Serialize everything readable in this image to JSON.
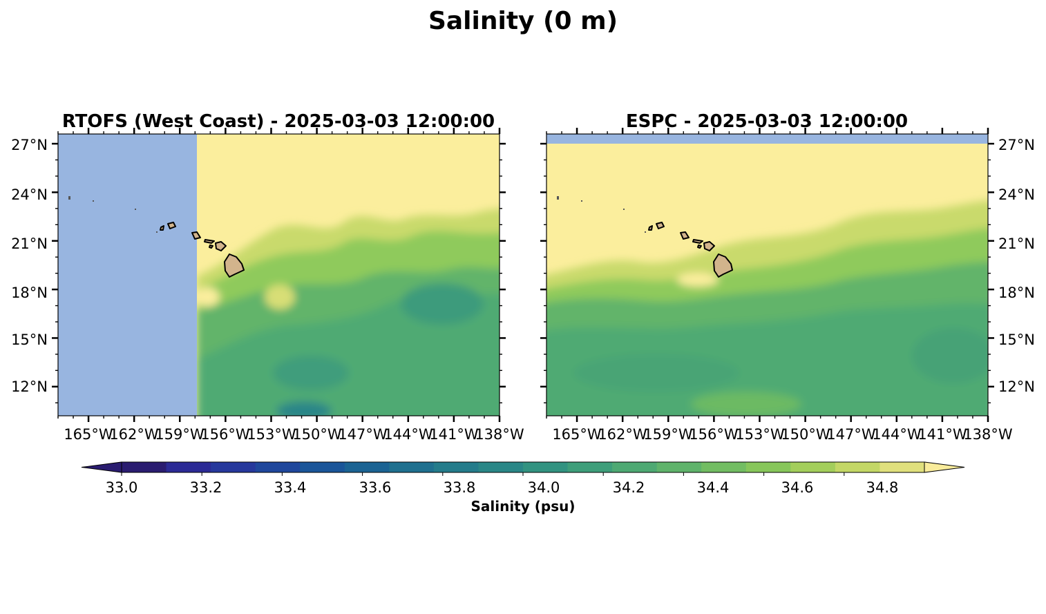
{
  "figure": {
    "title": "Salinity (0 m)"
  },
  "panels": [
    {
      "title": "RTOFS (West Coast) - 2025-03-03 12:00:00",
      "model": "RTOFS",
      "lat_labels": [
        "27°N",
        "24°N",
        "21°N",
        "18°N",
        "15°N",
        "12°N"
      ],
      "lon_labels": [
        "165°W",
        "162°W",
        "159°W",
        "156°W",
        "153°W",
        "150°W",
        "147°W",
        "144°W",
        "141°W",
        "138°W"
      ],
      "lat_label_side": "left",
      "no_data_region": "west of ~157.5°W",
      "no_data_color": "#98b5e0"
    },
    {
      "title": "ESPC - 2025-03-03 12:00:00",
      "model": "ESPC",
      "lat_labels": [
        "27°N",
        "24°N",
        "21°N",
        "18°N",
        "15°N",
        "12°N"
      ],
      "lon_labels": [
        "165°W",
        "162°W",
        "159°W",
        "156°W",
        "153°W",
        "150°W",
        "147°W",
        "144°W",
        "141°W",
        "138°W"
      ],
      "lat_label_side": "right",
      "no_data_region": "north of ~27°N",
      "no_data_color": "#98b5e0"
    }
  ],
  "map_extent": {
    "lon_min": -167,
    "lon_max": -138,
    "lat_min": 10.2,
    "lat_max": 27.6
  },
  "colorbar": {
    "label": "Salinity (psu)",
    "tick_labels": [
      "33.0",
      "33.2",
      "33.4",
      "33.6",
      "33.8",
      "34.0",
      "34.2",
      "34.4",
      "34.6",
      "34.8"
    ],
    "colors": [
      "#2a1c70",
      "#2b2a95",
      "#26389c",
      "#1f479c",
      "#1a5599",
      "#1b6393",
      "#1f708f",
      "#247c8b",
      "#2a8787",
      "#329381",
      "#3e9e7a",
      "#4ea973",
      "#5fb36b",
      "#72bd62",
      "#87c65a",
      "#a3ce5b",
      "#c3d766",
      "#e0e07d",
      "#f9ec9b"
    ],
    "extend": "both"
  },
  "land_color": "#d2b48c",
  "ocean_dominant_color": "#fbee9d"
}
